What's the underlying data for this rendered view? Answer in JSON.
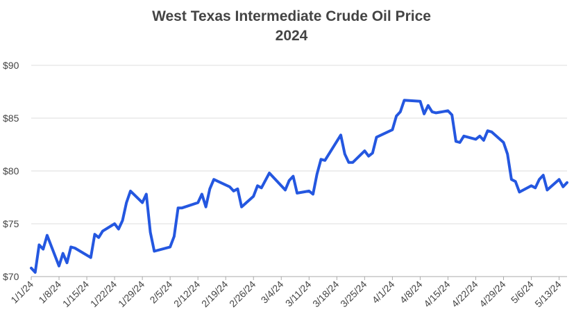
{
  "chart_data": {
    "type": "line",
    "title": "West Texas Intermediate Crude Oil Price",
    "subtitle": "2024",
    "x": [
      "2024-01-01",
      "2024-01-02",
      "2024-01-03",
      "2024-01-04",
      "2024-01-05",
      "2024-01-08",
      "2024-01-09",
      "2024-01-10",
      "2024-01-11",
      "2024-01-12",
      "2024-01-16",
      "2024-01-17",
      "2024-01-18",
      "2024-01-19",
      "2024-01-22",
      "2024-01-23",
      "2024-01-24",
      "2024-01-25",
      "2024-01-26",
      "2024-01-29",
      "2024-01-30",
      "2024-01-31",
      "2024-02-01",
      "2024-02-05",
      "2024-02-06",
      "2024-02-07",
      "2024-02-08",
      "2024-02-12",
      "2024-02-13",
      "2024-02-14",
      "2024-02-15",
      "2024-02-16",
      "2024-02-20",
      "2024-02-21",
      "2024-02-22",
      "2024-02-23",
      "2024-02-26",
      "2024-02-27",
      "2024-02-28",
      "2024-03-01",
      "2024-03-05",
      "2024-03-06",
      "2024-03-07",
      "2024-03-08",
      "2024-03-11",
      "2024-03-12",
      "2024-03-13",
      "2024-03-14",
      "2024-03-15",
      "2024-03-19",
      "2024-03-20",
      "2024-03-21",
      "2024-03-22",
      "2024-03-25",
      "2024-03-26",
      "2024-03-27",
      "2024-03-28",
      "2024-04-01",
      "2024-04-02",
      "2024-04-03",
      "2024-04-04",
      "2024-04-08",
      "2024-04-09",
      "2024-04-10",
      "2024-04-11",
      "2024-04-12",
      "2024-04-15",
      "2024-04-16",
      "2024-04-17",
      "2024-04-18",
      "2024-04-19",
      "2024-04-22",
      "2024-04-23",
      "2024-04-24",
      "2024-04-25",
      "2024-04-26",
      "2024-04-29",
      "2024-04-30",
      "2024-05-01",
      "2024-05-02",
      "2024-05-03",
      "2024-05-06",
      "2024-05-07",
      "2024-05-08",
      "2024-05-09",
      "2024-05-10",
      "2024-05-13",
      "2024-05-14",
      "2024-05-15"
    ],
    "series": [
      {
        "name": "WTI",
        "color": "#2457e0",
        "values": [
          70.8,
          70.4,
          73.0,
          72.6,
          73.9,
          71.0,
          72.2,
          71.3,
          72.8,
          72.7,
          71.8,
          74.0,
          73.7,
          74.3,
          75.0,
          74.5,
          75.3,
          77.0,
          78.1,
          77.0,
          77.8,
          74.2,
          72.4,
          72.8,
          73.8,
          76.5,
          76.5,
          77.0,
          77.8,
          76.6,
          78.3,
          79.2,
          78.5,
          78.1,
          78.3,
          76.6,
          77.6,
          78.6,
          78.4,
          79.8,
          78.2,
          79.1,
          79.5,
          77.9,
          78.1,
          77.8,
          79.7,
          81.1,
          81.0,
          83.4,
          81.6,
          80.8,
          80.8,
          81.9,
          81.4,
          81.7,
          83.2,
          83.9,
          85.2,
          85.6,
          86.7,
          86.6,
          85.4,
          86.2,
          85.6,
          85.5,
          85.7,
          85.3,
          82.8,
          82.7,
          83.3,
          83.0,
          83.3,
          82.9,
          83.8,
          83.7,
          82.7,
          81.6,
          79.2,
          79.0,
          78.0,
          78.6,
          78.4,
          79.2,
          79.6,
          78.2,
          79.2,
          78.5,
          78.9
        ]
      }
    ],
    "xlim": [
      "2024-01-01",
      "2024-05-15"
    ],
    "xticks": [
      {
        "value": "2024-01-01",
        "label": "1/1/24"
      },
      {
        "value": "2024-01-08",
        "label": "1/8/24"
      },
      {
        "value": "2024-01-15",
        "label": "1/15/24"
      },
      {
        "value": "2024-01-22",
        "label": "1/22/24"
      },
      {
        "value": "2024-01-29",
        "label": "1/29/24"
      },
      {
        "value": "2024-02-05",
        "label": "2/5/24"
      },
      {
        "value": "2024-02-12",
        "label": "2/12/24"
      },
      {
        "value": "2024-02-19",
        "label": "2/19/24"
      },
      {
        "value": "2024-02-26",
        "label": "2/26/24"
      },
      {
        "value": "2024-03-04",
        "label": "3/4/24"
      },
      {
        "value": "2024-03-11",
        "label": "3/11/24"
      },
      {
        "value": "2024-03-18",
        "label": "3/18/24"
      },
      {
        "value": "2024-03-25",
        "label": "3/25/24"
      },
      {
        "value": "2024-04-01",
        "label": "4/1/24"
      },
      {
        "value": "2024-04-08",
        "label": "4/8/24"
      },
      {
        "value": "2024-04-15",
        "label": "4/15/24"
      },
      {
        "value": "2024-04-22",
        "label": "4/22/24"
      },
      {
        "value": "2024-04-29",
        "label": "4/29/24"
      },
      {
        "value": "2024-05-06",
        "label": "5/6/24"
      },
      {
        "value": "2024-05-13",
        "label": "5/13/24"
      }
    ],
    "ylim": [
      70,
      90
    ],
    "yticks": [
      {
        "value": 70,
        "label": "$70"
      },
      {
        "value": 75,
        "label": "$75"
      },
      {
        "value": 80,
        "label": "$80"
      },
      {
        "value": 85,
        "label": "$85"
      },
      {
        "value": 90,
        "label": "$90"
      }
    ],
    "grid": true
  }
}
